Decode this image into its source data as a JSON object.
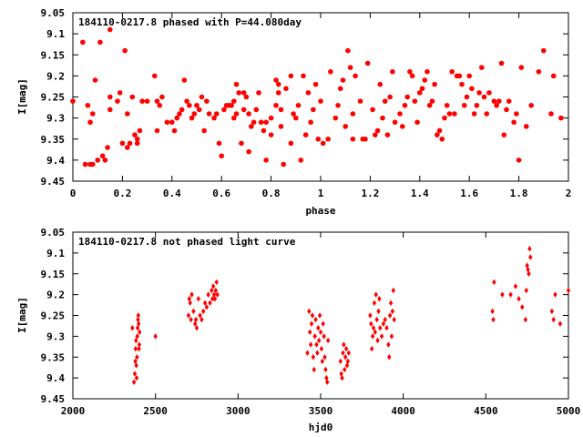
{
  "colors": {
    "point": "#ff0000",
    "axis": "#000000",
    "background": "#ffffff"
  },
  "chart_data": [
    {
      "type": "scatter",
      "title": "184110-0217.8 phased with P=44.080day",
      "xlabel": "phase",
      "ylabel": "I[mag]",
      "xlim": [
        0,
        2
      ],
      "ylim": [
        9.45,
        9.05
      ],
      "y_inverted": true,
      "grid": false,
      "legend": "none",
      "marker": "filled-circle",
      "xticks": [
        0,
        0.2,
        0.4,
        0.6,
        0.8,
        1,
        1.2,
        1.4,
        1.6,
        1.8,
        2
      ],
      "xticklabels": [
        "0",
        "0.2",
        "0.4",
        "0.6",
        "0.8",
        "1",
        "1.2",
        "1.4",
        "1.6",
        "1.8",
        "2"
      ],
      "yticks": [
        9.05,
        9.1,
        9.15,
        9.2,
        9.25,
        9.3,
        9.35,
        9.4,
        9.45
      ],
      "yticklabels": [
        "9.05",
        "9.1",
        "9.15",
        "9.2",
        "9.25",
        "9.3",
        "9.35",
        "9.4",
        "9.45"
      ],
      "points": [
        [
          0.0,
          9.26
        ],
        [
          0.04,
          9.12
        ],
        [
          0.05,
          9.41
        ],
        [
          0.06,
          9.27
        ],
        [
          0.07,
          9.41
        ],
        [
          0.07,
          9.31
        ],
        [
          0.08,
          9.41
        ],
        [
          0.08,
          9.29
        ],
        [
          0.09,
          9.21
        ],
        [
          0.1,
          9.4
        ],
        [
          0.11,
          9.12
        ],
        [
          0.12,
          9.39
        ],
        [
          0.13,
          9.4
        ],
        [
          0.14,
          9.37
        ],
        [
          0.15,
          9.25
        ],
        [
          0.15,
          9.28
        ],
        [
          0.15,
          9.09
        ],
        [
          0.18,
          9.26
        ],
        [
          0.19,
          9.24
        ],
        [
          0.2,
          9.36
        ],
        [
          0.21,
          9.14
        ],
        [
          0.22,
          9.37
        ],
        [
          0.22,
          9.29
        ],
        [
          0.23,
          9.36
        ],
        [
          0.24,
          9.25
        ],
        [
          0.25,
          9.34
        ],
        [
          0.26,
          9.35
        ],
        [
          0.26,
          9.36
        ],
        [
          0.27,
          9.33
        ],
        [
          0.28,
          9.26
        ],
        [
          0.3,
          9.26
        ],
        [
          0.33,
          9.2
        ],
        [
          0.34,
          9.33
        ],
        [
          0.34,
          9.26
        ],
        [
          0.35,
          9.27
        ],
        [
          0.36,
          9.25
        ],
        [
          0.38,
          9.31
        ],
        [
          0.4,
          9.31
        ],
        [
          0.41,
          9.33
        ],
        [
          0.42,
          9.3
        ],
        [
          0.43,
          9.29
        ],
        [
          0.44,
          9.28
        ],
        [
          0.45,
          9.21
        ],
        [
          0.46,
          9.26
        ],
        [
          0.47,
          9.27
        ],
        [
          0.48,
          9.3
        ],
        [
          0.49,
          9.29
        ],
        [
          0.5,
          9.27
        ],
        [
          0.51,
          9.28
        ],
        [
          0.52,
          9.25
        ],
        [
          0.53,
          9.33
        ],
        [
          0.54,
          9.26
        ],
        [
          0.55,
          9.29
        ],
        [
          0.57,
          9.3
        ],
        [
          0.58,
          9.29
        ],
        [
          0.59,
          9.36
        ],
        [
          0.6,
          9.39
        ],
        [
          0.61,
          9.28
        ],
        [
          0.62,
          9.27
        ],
        [
          0.63,
          9.27
        ],
        [
          0.64,
          9.27
        ],
        [
          0.65,
          9.26
        ],
        [
          0.65,
          9.3
        ],
        [
          0.66,
          9.22
        ],
        [
          0.66,
          9.29
        ],
        [
          0.67,
          9.24
        ],
        [
          0.68,
          9.36
        ],
        [
          0.69,
          9.28
        ],
        [
          0.69,
          9.24
        ],
        [
          0.7,
          9.25
        ],
        [
          0.71,
          9.38
        ],
        [
          0.71,
          9.29
        ],
        [
          0.72,
          9.32
        ],
        [
          0.73,
          9.31
        ],
        [
          0.74,
          9.28
        ],
        [
          0.75,
          9.24
        ],
        [
          0.76,
          9.31
        ],
        [
          0.77,
          9.33
        ],
        [
          0.78,
          9.4
        ],
        [
          0.78,
          9.31
        ],
        [
          0.8,
          9.34
        ],
        [
          0.8,
          9.3
        ],
        [
          0.82,
          9.21
        ],
        [
          0.82,
          9.27
        ],
        [
          0.83,
          9.22
        ],
        [
          0.83,
          9.24
        ],
        [
          0.84,
          9.32
        ],
        [
          0.84,
          9.28
        ],
        [
          0.85,
          9.41
        ],
        [
          0.86,
          9.23
        ],
        [
          0.88,
          9.2
        ],
        [
          0.88,
          9.36
        ],
        [
          0.89,
          9.29
        ],
        [
          0.9,
          9.3
        ],
        [
          0.91,
          9.27
        ],
        [
          0.92,
          9.4
        ],
        [
          0.93,
          9.2
        ],
        [
          0.94,
          9.34
        ],
        [
          0.95,
          9.24
        ],
        [
          0.96,
          9.31
        ],
        [
          0.97,
          9.28
        ],
        [
          0.98,
          9.22
        ],
        [
          0.99,
          9.35
        ],
        [
          1.0,
          9.26
        ],
        [
          1.01,
          9.36
        ],
        [
          1.03,
          9.35
        ],
        [
          1.04,
          9.19
        ],
        [
          1.06,
          9.3
        ],
        [
          1.07,
          9.27
        ],
        [
          1.08,
          9.23
        ],
        [
          1.09,
          9.21
        ],
        [
          1.1,
          9.32
        ],
        [
          1.11,
          9.14
        ],
        [
          1.12,
          9.18
        ],
        [
          1.13,
          9.29
        ],
        [
          1.13,
          9.35
        ],
        [
          1.14,
          9.2
        ],
        [
          1.16,
          9.26
        ],
        [
          1.17,
          9.35
        ],
        [
          1.18,
          9.35
        ],
        [
          1.19,
          9.17
        ],
        [
          1.21,
          9.28
        ],
        [
          1.22,
          9.34
        ],
        [
          1.23,
          9.33
        ],
        [
          1.24,
          9.22
        ],
        [
          1.25,
          9.3
        ],
        [
          1.26,
          9.26
        ],
        [
          1.27,
          9.34
        ],
        [
          1.28,
          9.25
        ],
        [
          1.29,
          9.19
        ],
        [
          1.3,
          9.31
        ],
        [
          1.32,
          9.29
        ],
        [
          1.33,
          9.32
        ],
        [
          1.34,
          9.27
        ],
        [
          1.35,
          9.25
        ],
        [
          1.36,
          9.19
        ],
        [
          1.37,
          9.2
        ],
        [
          1.38,
          9.26
        ],
        [
          1.39,
          9.31
        ],
        [
          1.4,
          9.24
        ],
        [
          1.41,
          9.23
        ],
        [
          1.42,
          9.21
        ],
        [
          1.43,
          9.19
        ],
        [
          1.44,
          9.27
        ],
        [
          1.45,
          9.26
        ],
        [
          1.46,
          9.22
        ],
        [
          1.47,
          9.34
        ],
        [
          1.48,
          9.33
        ],
        [
          1.49,
          9.35
        ],
        [
          1.5,
          9.3
        ],
        [
          1.51,
          9.27
        ],
        [
          1.52,
          9.29
        ],
        [
          1.53,
          9.19
        ],
        [
          1.54,
          9.29
        ],
        [
          1.55,
          9.2
        ],
        [
          1.56,
          9.2
        ],
        [
          1.57,
          9.22
        ],
        [
          1.58,
          9.27
        ],
        [
          1.59,
          9.25
        ],
        [
          1.6,
          9.2
        ],
        [
          1.61,
          9.23
        ],
        [
          1.62,
          9.29
        ],
        [
          1.63,
          9.27
        ],
        [
          1.64,
          9.24
        ],
        [
          1.65,
          9.18
        ],
        [
          1.66,
          9.25
        ],
        [
          1.67,
          9.29
        ],
        [
          1.68,
          9.24
        ],
        [
          1.7,
          9.26
        ],
        [
          1.71,
          9.27
        ],
        [
          1.72,
          9.26
        ],
        [
          1.73,
          9.17
        ],
        [
          1.74,
          9.34
        ],
        [
          1.75,
          9.28
        ],
        [
          1.76,
          9.26
        ],
        [
          1.78,
          9.31
        ],
        [
          1.79,
          9.29
        ],
        [
          1.8,
          9.4
        ],
        [
          1.81,
          9.18
        ],
        [
          1.83,
          9.32
        ],
        [
          1.85,
          9.27
        ],
        [
          1.88,
          9.19
        ],
        [
          1.9,
          9.14
        ],
        [
          1.93,
          9.29
        ],
        [
          1.94,
          9.2
        ],
        [
          1.97,
          9.3
        ]
      ]
    },
    {
      "type": "scatter",
      "title": "184110-0217.8 not phased light curve",
      "xlabel": "hjd0",
      "ylabel": "I[mag]",
      "xlim": [
        2000,
        5000
      ],
      "ylim": [
        9.45,
        9.05
      ],
      "y_inverted": true,
      "grid": false,
      "legend": "none",
      "marker": "filled-diamond",
      "xticks": [
        2000,
        2500,
        3000,
        3500,
        4000,
        4500,
        5000
      ],
      "xticklabels": [
        "2000",
        "2500",
        "3000",
        "3500",
        "4000",
        "4500",
        "5000"
      ],
      "yticks": [
        9.05,
        9.1,
        9.15,
        9.2,
        9.25,
        9.3,
        9.35,
        9.4,
        9.45
      ],
      "yticklabels": [
        "9.05",
        "9.1",
        "9.15",
        "9.2",
        "9.25",
        "9.3",
        "9.35",
        "9.4",
        "9.45"
      ],
      "points": [
        [
          2360,
          9.28
        ],
        [
          2370,
          9.41
        ],
        [
          2375,
          9.39
        ],
        [
          2378,
          9.36
        ],
        [
          2380,
          9.33
        ],
        [
          2382,
          9.31
        ],
        [
          2384,
          9.37
        ],
        [
          2386,
          9.4
        ],
        [
          2388,
          9.35
        ],
        [
          2390,
          9.3
        ],
        [
          2392,
          9.28
        ],
        [
          2394,
          9.26
        ],
        [
          2396,
          9.25
        ],
        [
          2398,
          9.27
        ],
        [
          2400,
          9.33
        ],
        [
          2402,
          9.32
        ],
        [
          2404,
          9.29
        ],
        [
          2500,
          9.3
        ],
        [
          2700,
          9.25
        ],
        [
          2705,
          9.21
        ],
        [
          2710,
          9.22
        ],
        [
          2715,
          9.26
        ],
        [
          2720,
          9.2
        ],
        [
          2730,
          9.24
        ],
        [
          2740,
          9.27
        ],
        [
          2745,
          9.26
        ],
        [
          2750,
          9.28
        ],
        [
          2760,
          9.21
        ],
        [
          2770,
          9.25
        ],
        [
          2780,
          9.26
        ],
        [
          2790,
          9.24
        ],
        [
          2800,
          9.22
        ],
        [
          2810,
          9.23
        ],
        [
          2820,
          9.2
        ],
        [
          2830,
          9.22
        ],
        [
          2840,
          9.19
        ],
        [
          2845,
          9.21
        ],
        [
          2850,
          9.18
        ],
        [
          2855,
          9.2
        ],
        [
          2860,
          9.21
        ],
        [
          2865,
          9.19
        ],
        [
          2870,
          9.17
        ],
        [
          2875,
          9.2
        ],
        [
          3420,
          9.34
        ],
        [
          3430,
          9.24
        ],
        [
          3435,
          9.29
        ],
        [
          3440,
          9.32
        ],
        [
          3445,
          9.27
        ],
        [
          3450,
          9.25
        ],
        [
          3455,
          9.35
        ],
        [
          3460,
          9.38
        ],
        [
          3465,
          9.3
        ],
        [
          3470,
          9.26
        ],
        [
          3475,
          9.32
        ],
        [
          3480,
          9.34
        ],
        [
          3485,
          9.28
        ],
        [
          3490,
          9.31
        ],
        [
          3495,
          9.25
        ],
        [
          3500,
          9.29
        ],
        [
          3505,
          9.33
        ],
        [
          3510,
          9.36
        ],
        [
          3515,
          9.27
        ],
        [
          3520,
          9.3
        ],
        [
          3525,
          9.35
        ],
        [
          3530,
          9.38
        ],
        [
          3535,
          9.4
        ],
        [
          3540,
          9.41
        ],
        [
          3545,
          9.31
        ],
        [
          3620,
          9.36
        ],
        [
          3625,
          9.39
        ],
        [
          3630,
          9.4
        ],
        [
          3635,
          9.34
        ],
        [
          3640,
          9.32
        ],
        [
          3645,
          9.38
        ],
        [
          3650,
          9.35
        ],
        [
          3655,
          9.33
        ],
        [
          3660,
          9.37
        ],
        [
          3665,
          9.36
        ],
        [
          3670,
          9.34
        ],
        [
          3800,
          9.25
        ],
        [
          3805,
          9.27
        ],
        [
          3810,
          9.33
        ],
        [
          3815,
          9.3
        ],
        [
          3820,
          9.28
        ],
        [
          3825,
          9.22
        ],
        [
          3830,
          9.29
        ],
        [
          3835,
          9.2
        ],
        [
          3840,
          9.26
        ],
        [
          3845,
          9.31
        ],
        [
          3850,
          9.24
        ],
        [
          3855,
          9.21
        ],
        [
          3860,
          9.28
        ],
        [
          3870,
          9.3
        ],
        [
          3880,
          9.27
        ],
        [
          3890,
          9.26
        ],
        [
          3900,
          9.28
        ],
        [
          3910,
          9.32
        ],
        [
          3915,
          9.35
        ],
        [
          3920,
          9.25
        ],
        [
          3925,
          9.22
        ],
        [
          3930,
          9.3
        ],
        [
          3935,
          9.24
        ],
        [
          3940,
          9.19
        ],
        [
          3945,
          9.26
        ],
        [
          4540,
          9.24
        ],
        [
          4545,
          9.26
        ],
        [
          4550,
          9.17
        ],
        [
          4600,
          9.2
        ],
        [
          4650,
          9.2
        ],
        [
          4680,
          9.18
        ],
        [
          4700,
          9.21
        ],
        [
          4720,
          9.23
        ],
        [
          4740,
          9.26
        ],
        [
          4745,
          9.19
        ],
        [
          4750,
          9.13
        ],
        [
          4755,
          9.14
        ],
        [
          4760,
          9.15
        ],
        [
          4765,
          9.09
        ],
        [
          4770,
          9.11
        ],
        [
          4900,
          9.24
        ],
        [
          4910,
          9.26
        ],
        [
          4920,
          9.2
        ],
        [
          4950,
          9.27
        ],
        [
          5000,
          9.19
        ]
      ]
    }
  ]
}
